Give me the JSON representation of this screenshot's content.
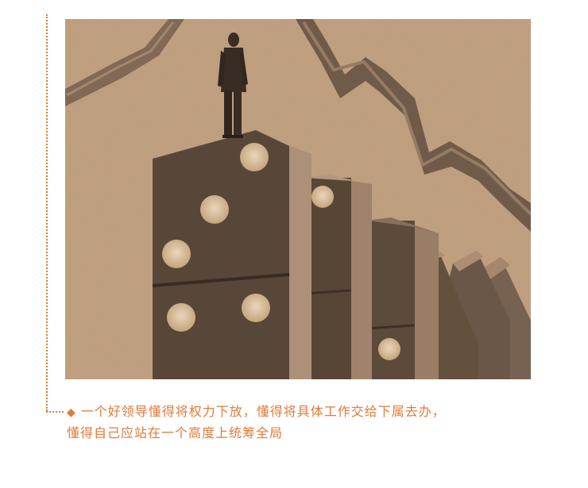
{
  "caption": {
    "bullet": "◆",
    "line1": "一个好领导懂得将权力下放，懂得将具体工作交给下属去办，",
    "line2": "懂得自己应站在一个高度上统筹全局"
  },
  "colors": {
    "accent": "#e07a3a",
    "background_tan": "#c9a886",
    "domino_dark": "#6e5a49",
    "domino_light": "#b39377",
    "pip": "#e6cfb0"
  },
  "illustration": {
    "subject": "businessman-standing-on-falling-dominoes-with-graph-line"
  }
}
